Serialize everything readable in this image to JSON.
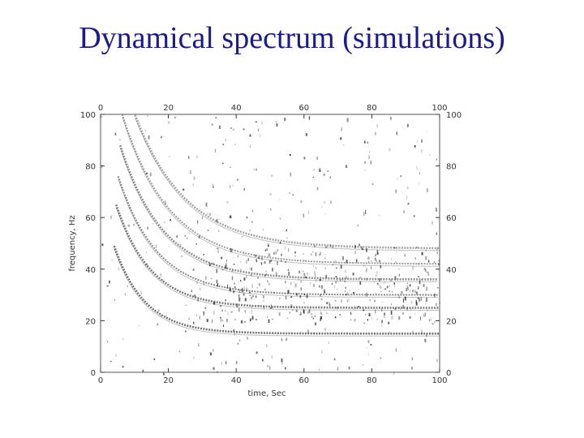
{
  "slide": {
    "title": "Dynamical spectrum (simulations)"
  },
  "colors": {
    "title": "#1a1a8c",
    "ink": "#000000",
    "axis": "#333333"
  },
  "chart_data": {
    "type": "heatmap",
    "title": "",
    "xlabel": "time, Sec",
    "ylabel": "frequency, Hz",
    "xlim": [
      0,
      100
    ],
    "ylim": [
      0,
      100
    ],
    "x_ticks": [
      0,
      20,
      40,
      60,
      80,
      100
    ],
    "y_ticks": [
      0,
      20,
      40,
      60,
      80,
      100
    ],
    "x_tick_labels_bottom": [
      "0",
      "20",
      "40",
      "60",
      "80",
      "100"
    ],
    "x_tick_labels_top": [
      "0",
      "20",
      "40",
      "60",
      "80",
      "100"
    ],
    "y_tick_labels_left": [
      "0",
      "20",
      "40",
      "60",
      "80",
      "100"
    ],
    "y_tick_labels_right": [
      "0",
      "20",
      "40",
      "60",
      "80",
      "100"
    ],
    "colormap": "grayscale (white = low intensity, black = high intensity)",
    "grid": false,
    "features": [
      {
        "description": "harmonic bands decaying from high frequency at t≈5 s and flattening toward t=100 s",
        "bands": [
          {
            "asymptote_hz": 15
          },
          {
            "asymptote_hz": 25
          },
          {
            "asymptote_hz": 30
          },
          {
            "asymptote_hz": 36
          },
          {
            "asymptote_hz": 42
          },
          {
            "asymptote_hz": 48
          }
        ]
      },
      {
        "description": "dense broadband noise region",
        "time_range": [
          20,
          100
        ],
        "freq_range": [
          20,
          50
        ]
      }
    ]
  }
}
